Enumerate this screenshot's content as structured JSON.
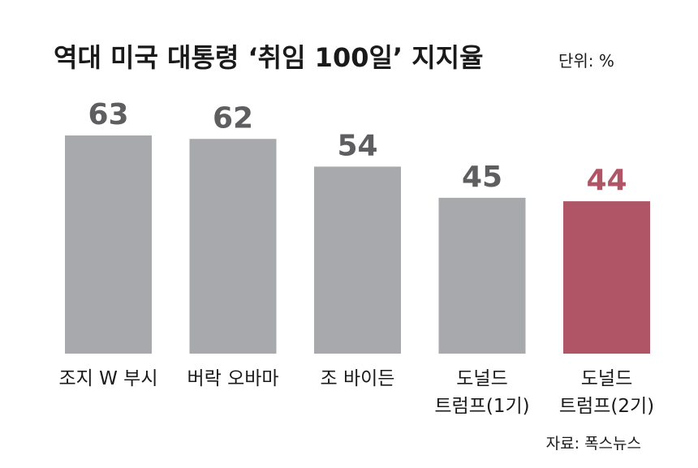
{
  "chart_data": {
    "type": "bar",
    "title": "역대 미국 대통령 ‘취임 100일’ 지지율",
    "unit_label": "단위: %",
    "source": "자료: 폭스뉴스",
    "categories": [
      [
        "조지 W 부시"
      ],
      [
        "버락 오바마"
      ],
      [
        "조 바이든"
      ],
      [
        "도널드",
        "트럼프(1기)"
      ],
      [
        "도널드",
        "트럼프(2기)"
      ]
    ],
    "values": [
      63,
      62,
      54,
      45,
      44
    ],
    "highlight_index": 4,
    "ylim": [
      0,
      63
    ],
    "grid": false,
    "colors": {
      "bar": "#a7a9ac",
      "highlight": "#b05565",
      "value_text": "#5e5e60",
      "highlight_text": "#b05565"
    }
  }
}
